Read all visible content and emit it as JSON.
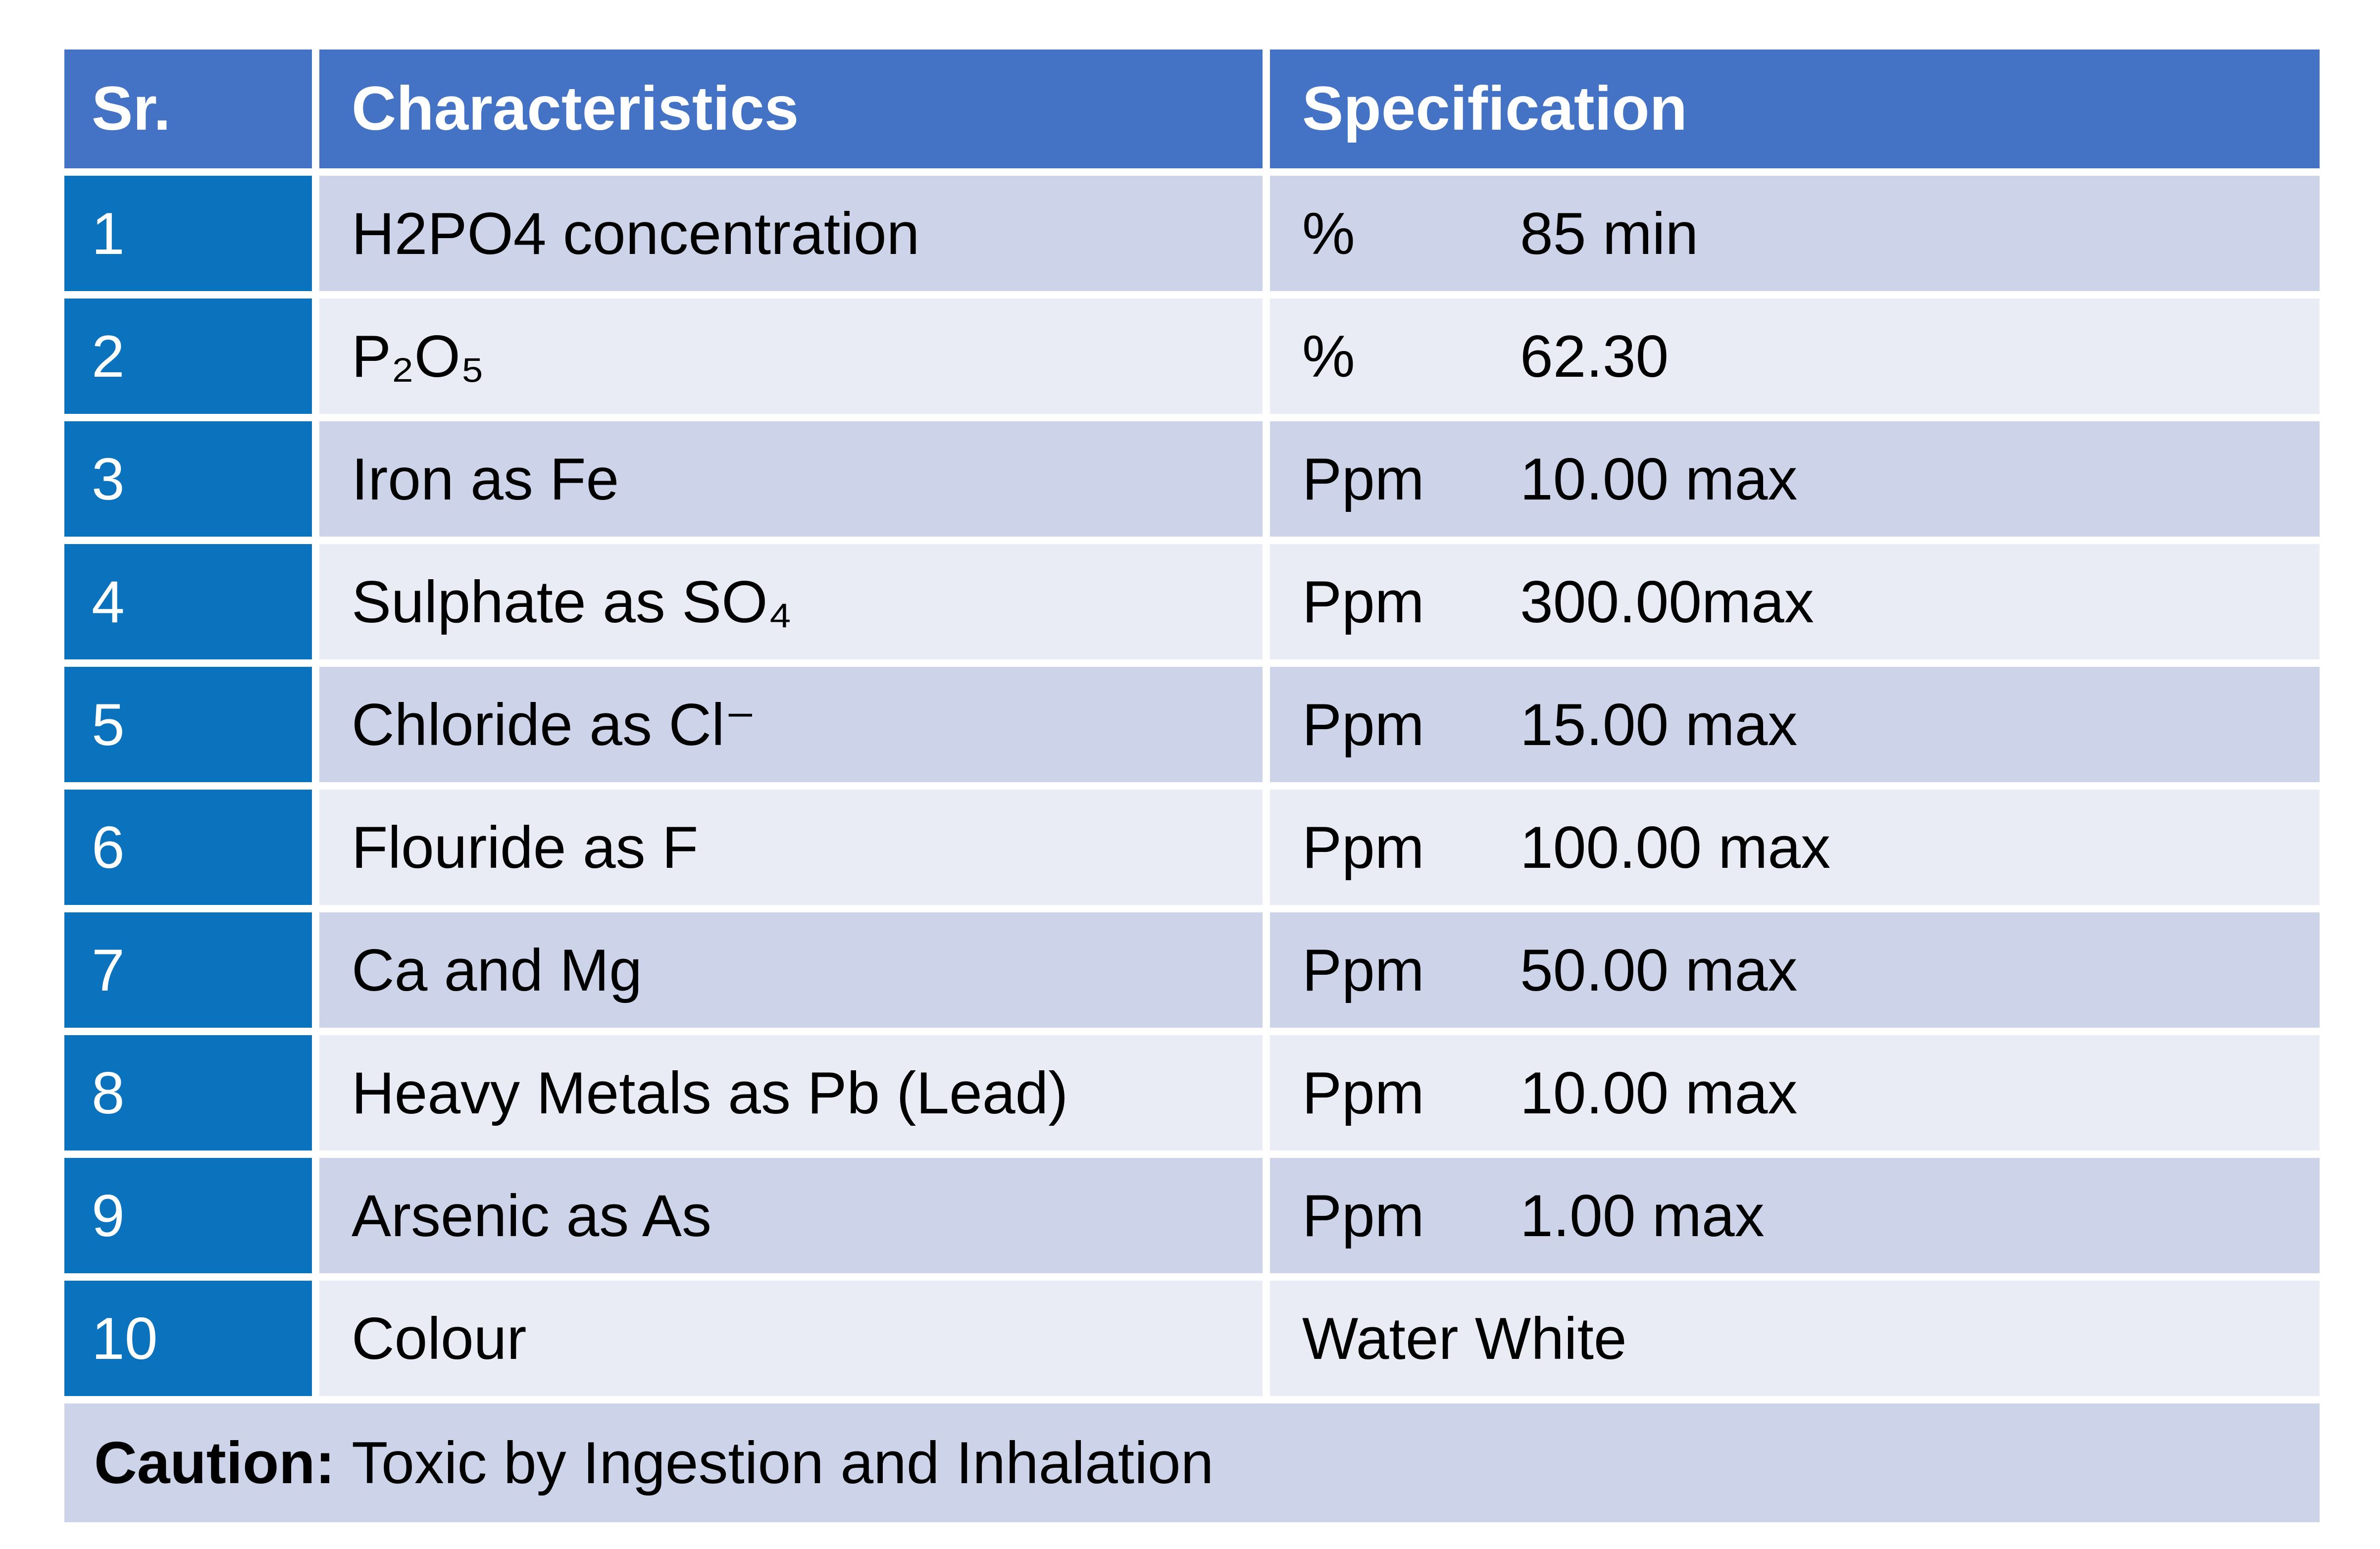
{
  "table": {
    "headers": {
      "sr": "Sr.",
      "characteristics": "Characteristics",
      "specification": "Specification"
    },
    "rows": [
      {
        "sr": "1",
        "characteristic": "H2PO4 concentration",
        "unit": "%",
        "value": "85 min"
      },
      {
        "sr": "2",
        "characteristic": "P₂O₅",
        "unit": "%",
        "value": "62.30"
      },
      {
        "sr": "3",
        "characteristic": "Iron as Fe",
        "unit": "Ppm",
        "value": "10.00 max"
      },
      {
        "sr": "4",
        "characteristic": "Sulphate as SO₄",
        "unit": "Ppm",
        "value": "300.00max"
      },
      {
        "sr": "5",
        "characteristic": "Chloride as Cl⁻",
        "unit": "Ppm",
        "value": "15.00 max"
      },
      {
        "sr": "6",
        "characteristic": "Flouride as F",
        "unit": "Ppm",
        "value": "100.00 max"
      },
      {
        "sr": "7",
        "characteristic": "Ca and Mg",
        "unit": "Ppm",
        "value": "50.00 max"
      },
      {
        "sr": "8",
        "characteristic": "Heavy Metals as Pb (Lead)",
        "unit": "Ppm",
        "value": "10.00 max"
      },
      {
        "sr": "9",
        "characteristic": "Arsenic as As",
        "unit": "Ppm",
        "value": "1.00 max"
      },
      {
        "sr": "10",
        "characteristic": "Colour",
        "unit": "",
        "value": "Water White"
      }
    ],
    "caution": {
      "label": "Caution:",
      "text": "Toxic by Ingestion and Inhalation"
    }
  },
  "colors": {
    "header_bg": "#4472C4",
    "serial_bg": "#0B72BE",
    "row_odd_bg": "#CDD3E8",
    "row_even_bg": "#E9EBF5",
    "caution_bg": "#CDD3E8",
    "header_text": "#FFFFFF",
    "body_text": "#000000"
  }
}
